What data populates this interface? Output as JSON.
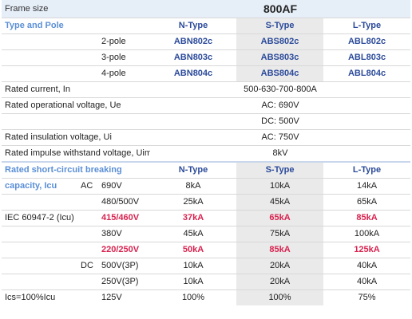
{
  "frame": {
    "label": "Frame size",
    "value": "800AF"
  },
  "type_pole": {
    "label": "Type and Pole",
    "columns": [
      "N-Type",
      "S-Type",
      "L-Type"
    ],
    "rows": [
      {
        "pole": "2-pole",
        "n": "ABN802c",
        "s": "ABS802c",
        "l": "ABL802c"
      },
      {
        "pole": "3-pole",
        "n": "ABN803c",
        "s": "ABS803c",
        "l": "ABL803c"
      },
      {
        "pole": "4-pole",
        "n": "ABN804c",
        "s": "ABS804c",
        "l": "ABL804c"
      }
    ]
  },
  "ratings": {
    "current_label": "Rated current, In",
    "current_value": "500-630-700-800A",
    "op_voltage_label": "Rated operational voltage, Ue",
    "op_voltage_ac": "AC: 690V",
    "op_voltage_dc": "DC: 500V",
    "insulation_label": "Rated insulation voltage, Ui",
    "insulation_value": "AC: 750V",
    "impulse_label": "Rated impulse withstand voltage, Uimp",
    "impulse_value": "8kV"
  },
  "breaking": {
    "label_line1": "Rated short-circuit breaking",
    "label_line2": "capacity, Icu",
    "standard": "IEC 60947-2 (Icu)",
    "columns": [
      "N-Type",
      "S-Type",
      "L-Type"
    ],
    "ac_label": "AC",
    "dc_label": "DC",
    "rows": [
      {
        "group": "AC",
        "voltage": "690V",
        "n": "8kA",
        "s": "10kA",
        "l": "14kA",
        "highlight": false
      },
      {
        "group": "",
        "voltage": "480/500V",
        "n": "25kA",
        "s": "45kA",
        "l": "65kA",
        "highlight": false
      },
      {
        "group": "",
        "voltage": "415/460V",
        "n": "37kA",
        "s": "65kA",
        "l": "85kA",
        "highlight": true
      },
      {
        "group": "",
        "voltage": "380V",
        "n": "45kA",
        "s": "75kA",
        "l": "100kA",
        "highlight": false
      },
      {
        "group": "",
        "voltage": "220/250V",
        "n": "50kA",
        "s": "85kA",
        "l": "125kA",
        "highlight": true
      },
      {
        "group": "DC",
        "voltage": "500V(3P)",
        "n": "10kA",
        "s": "20kA",
        "l": "40kA",
        "highlight": false
      },
      {
        "group": "",
        "voltage": "250V(3P)",
        "n": "10kA",
        "s": "20kA",
        "l": "40kA",
        "highlight": false
      }
    ],
    "ics_label": "Ics=100%Icu",
    "ics_voltage": "125V",
    "ics_n": "100%",
    "ics_s": "100%",
    "ics_l": "75%"
  }
}
